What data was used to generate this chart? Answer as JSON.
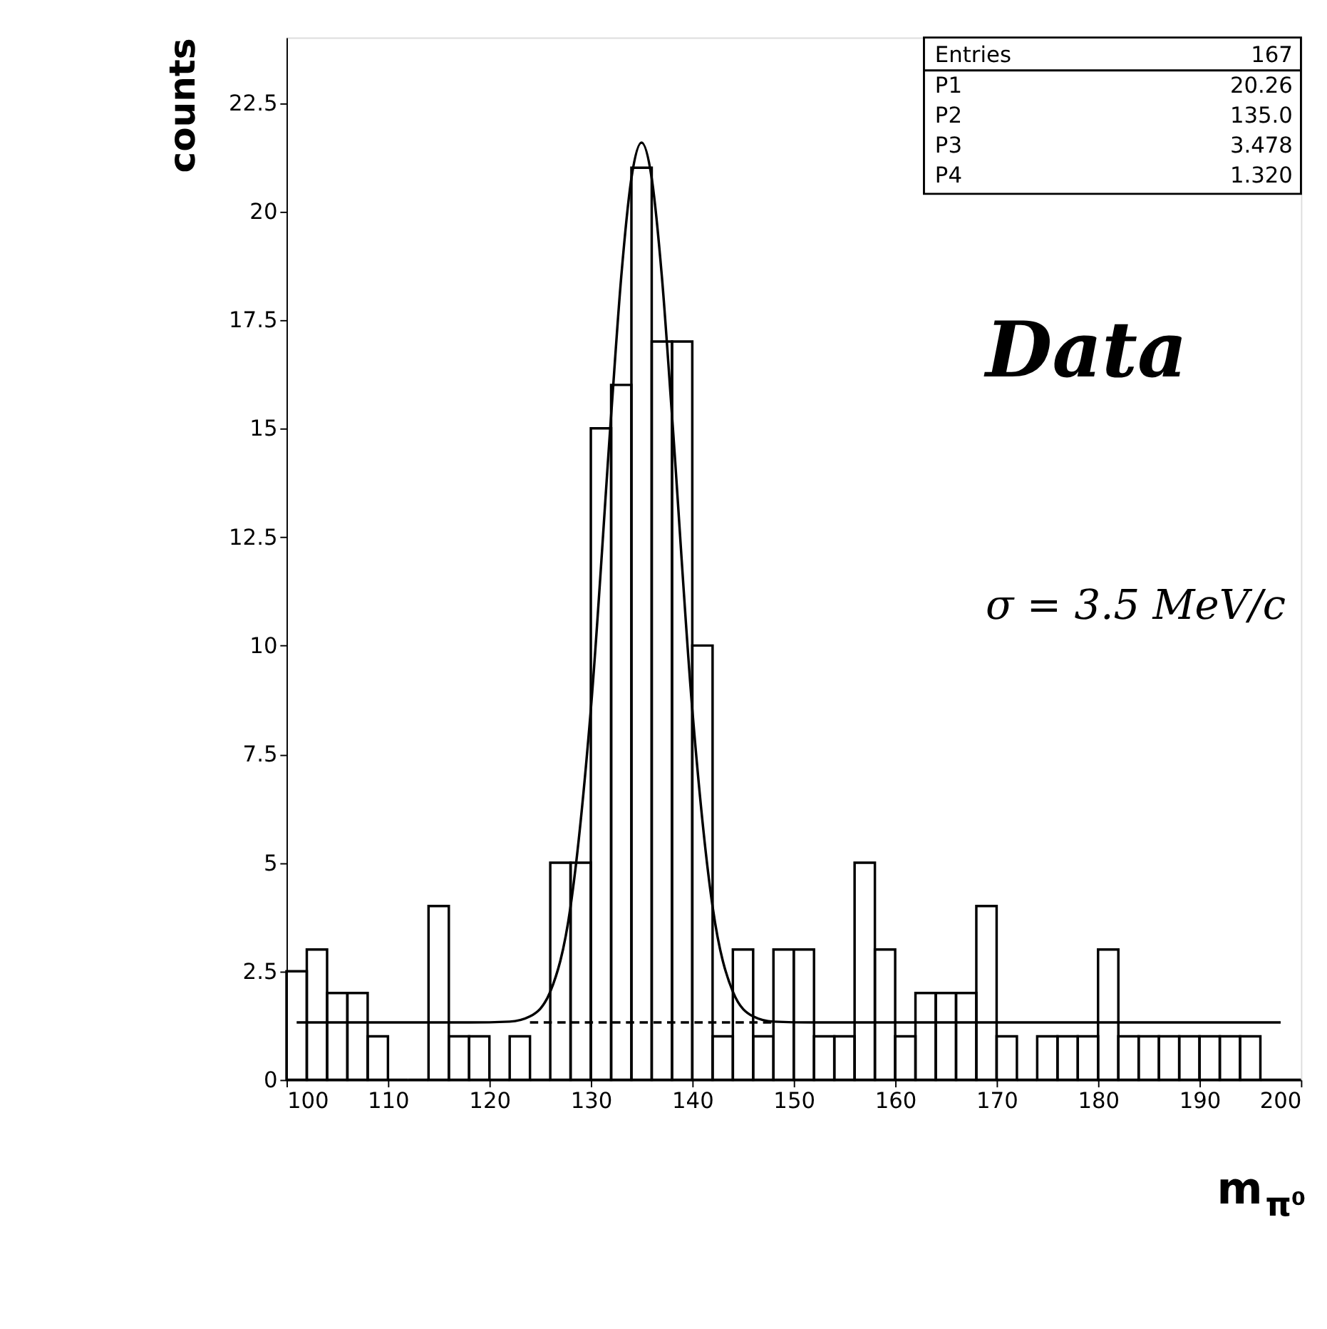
{
  "chart_data": {
    "type": "histogram",
    "ylabel": "counts",
    "xlabel": "m$_{π⁰}$",
    "bins": [
      100,
      102,
      104,
      106,
      108,
      110,
      112,
      114,
      116,
      118,
      120,
      122,
      124,
      126,
      128,
      130,
      132,
      134,
      136,
      138,
      140,
      142,
      144,
      146,
      148,
      150,
      152,
      154,
      156,
      158,
      160,
      162,
      164,
      166,
      168,
      170,
      172,
      174,
      176,
      178,
      180,
      182,
      184,
      186,
      188,
      190,
      192,
      194,
      196,
      198,
      200
    ],
    "values": [
      2.5,
      3,
      2,
      2,
      1,
      0,
      0,
      4,
      1,
      1,
      0,
      1,
      0,
      5,
      5,
      15,
      16,
      21,
      17,
      17,
      10,
      1,
      3,
      1,
      3,
      3,
      1,
      1,
      5,
      3,
      1,
      2,
      2,
      2,
      4,
      1,
      0,
      1,
      1,
      1,
      3,
      1,
      1,
      1,
      1,
      1,
      1,
      1,
      0,
      0
    ],
    "color": "#000000",
    "series": [
      {
        "type": "line",
        "color": "#000000",
        "line_style": "solid",
        "x": [
          101,
          118,
          122,
          124,
          126,
          128,
          130,
          132,
          133,
          134,
          135,
          136,
          137,
          138,
          140,
          142,
          144,
          146,
          148,
          152,
          198
        ],
        "values": [
          1.32,
          1.32,
          1.34,
          1.46,
          2.03,
          3.99,
          8.53,
          15.3,
          18.5,
          20.76,
          21.58,
          20.76,
          18.5,
          15.3,
          8.53,
          3.99,
          2.03,
          1.46,
          1.34,
          1.32,
          1.32
        ]
      },
      {
        "type": "line",
        "color": "#000000",
        "line_style": "dashed",
        "x": [
          124,
          148
        ],
        "values": [
          1.32,
          1.32
        ]
      }
    ],
    "xlim": [
      100,
      200
    ],
    "ylim": [
      0,
      24
    ],
    "xticks": [
      100,
      110,
      120,
      130,
      140,
      150,
      160,
      170,
      180,
      190,
      200
    ],
    "yticks": [
      0,
      2.5,
      5,
      7.5,
      10,
      12.5,
      15,
      17.5,
      20,
      22.5
    ],
    "grid": false,
    "annotations": [
      "Entries 167",
      "P1 20.26",
      "P2 135.0",
      "P3 3.478",
      "P4 1.320",
      "Data",
      "σ = 3.5 MeV/c"
    ]
  }
}
